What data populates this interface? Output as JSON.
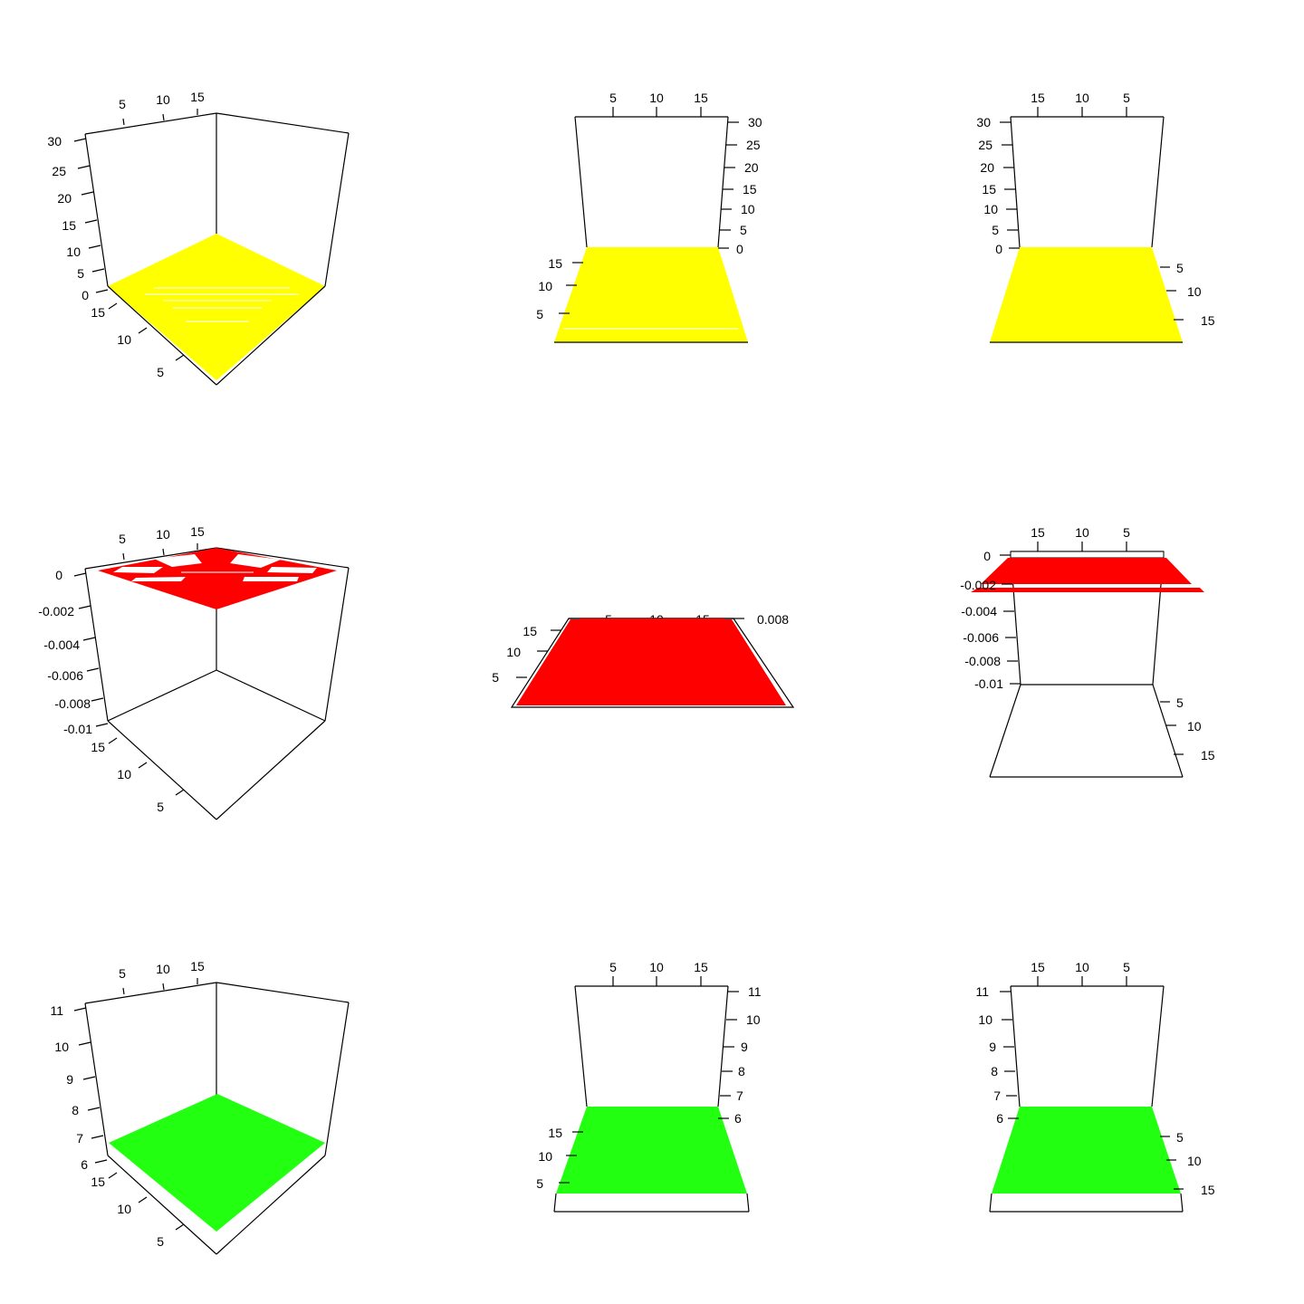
{
  "chart_data": [
    {
      "type": "surface3d",
      "view": "perspective",
      "color": "#ffff00",
      "x_ticks": [
        "5",
        "10",
        "15"
      ],
      "y_ticks": [
        "15",
        "10",
        "5"
      ],
      "z_ticks": [
        "30",
        "25",
        "20",
        "15",
        "10",
        "5",
        "0"
      ],
      "x_range": [
        1,
        20
      ],
      "y_range": [
        1,
        20
      ],
      "z_range": [
        0,
        30
      ],
      "surface_level": 0
    },
    {
      "type": "surface3d",
      "view": "front",
      "color": "#ffff00",
      "x_ticks": [
        "5",
        "10",
        "15"
      ],
      "y_ticks": [
        "15",
        "10",
        "5"
      ],
      "z_ticks": [
        "30",
        "25",
        "20",
        "15",
        "10",
        "5",
        "0"
      ],
      "x_range": [
        1,
        20
      ],
      "y_range": [
        1,
        20
      ],
      "z_range": [
        0,
        30
      ],
      "surface_level": 0
    },
    {
      "type": "surface3d",
      "view": "mirror",
      "color": "#ffff00",
      "x_ticks": [
        "15",
        "10",
        "5"
      ],
      "y_ticks": [
        "5",
        "10",
        "15"
      ],
      "z_ticks": [
        "30",
        "25",
        "20",
        "15",
        "10",
        "5",
        "0"
      ],
      "x_range": [
        1,
        20
      ],
      "y_range": [
        1,
        20
      ],
      "z_range": [
        0,
        30
      ],
      "surface_level": 0
    },
    {
      "type": "surface3d",
      "view": "perspective",
      "color": "#ff0000",
      "x_ticks": [
        "5",
        "10",
        "15"
      ],
      "y_ticks": [
        "15",
        "10",
        "5"
      ],
      "z_ticks": [
        "0",
        "-0.002",
        "-0.004",
        "-0.006",
        "-0.008",
        "-0.01"
      ],
      "x_range": [
        1,
        20
      ],
      "y_range": [
        1,
        20
      ],
      "z_range": [
        -0.01,
        0
      ],
      "surface_level": 0
    },
    {
      "type": "surface3d",
      "view": "front-flat",
      "color": "#ff0000",
      "x_ticks": [
        "5",
        "10",
        "15"
      ],
      "y_ticks": [
        "15",
        "10",
        "5"
      ],
      "z_overlap_label": "0.008",
      "x_range": [
        1,
        20
      ],
      "y_range": [
        1,
        20
      ],
      "surface_level": 0
    },
    {
      "type": "surface3d",
      "view": "mirror",
      "color": "#ff0000",
      "x_ticks": [
        "15",
        "10",
        "5"
      ],
      "y_ticks": [
        "5",
        "10",
        "15"
      ],
      "z_ticks": [
        "0",
        "-0.002",
        "-0.004",
        "-0.006",
        "-0.008",
        "-0.01"
      ],
      "x_range": [
        1,
        20
      ],
      "y_range": [
        1,
        20
      ],
      "z_range": [
        -0.01,
        0
      ],
      "surface_level": 0
    },
    {
      "type": "surface3d",
      "view": "perspective",
      "color": "#22ff11",
      "x_ticks": [
        "5",
        "10",
        "15"
      ],
      "y_ticks": [
        "15",
        "10",
        "5"
      ],
      "z_ticks": [
        "11",
        "10",
        "9",
        "8",
        "7",
        "6"
      ],
      "x_range": [
        1,
        20
      ],
      "y_range": [
        1,
        20
      ],
      "z_range": [
        6,
        11
      ],
      "surface_level": 6.5
    },
    {
      "type": "surface3d",
      "view": "front",
      "color": "#22ff11",
      "x_ticks": [
        "5",
        "10",
        "15"
      ],
      "y_ticks": [
        "15",
        "10",
        "5"
      ],
      "z_ticks": [
        "11",
        "10",
        "9",
        "8",
        "7",
        "6"
      ],
      "x_range": [
        1,
        20
      ],
      "y_range": [
        1,
        20
      ],
      "z_range": [
        6,
        11
      ],
      "surface_level": 6.5
    },
    {
      "type": "surface3d",
      "view": "mirror",
      "color": "#22ff11",
      "x_ticks": [
        "15",
        "10",
        "5"
      ],
      "y_ticks": [
        "5",
        "10",
        "15"
      ],
      "z_ticks": [
        "11",
        "10",
        "9",
        "8",
        "7",
        "6"
      ],
      "x_range": [
        1,
        20
      ],
      "y_range": [
        1,
        20
      ],
      "z_range": [
        6,
        11
      ],
      "surface_level": 6.5
    }
  ]
}
